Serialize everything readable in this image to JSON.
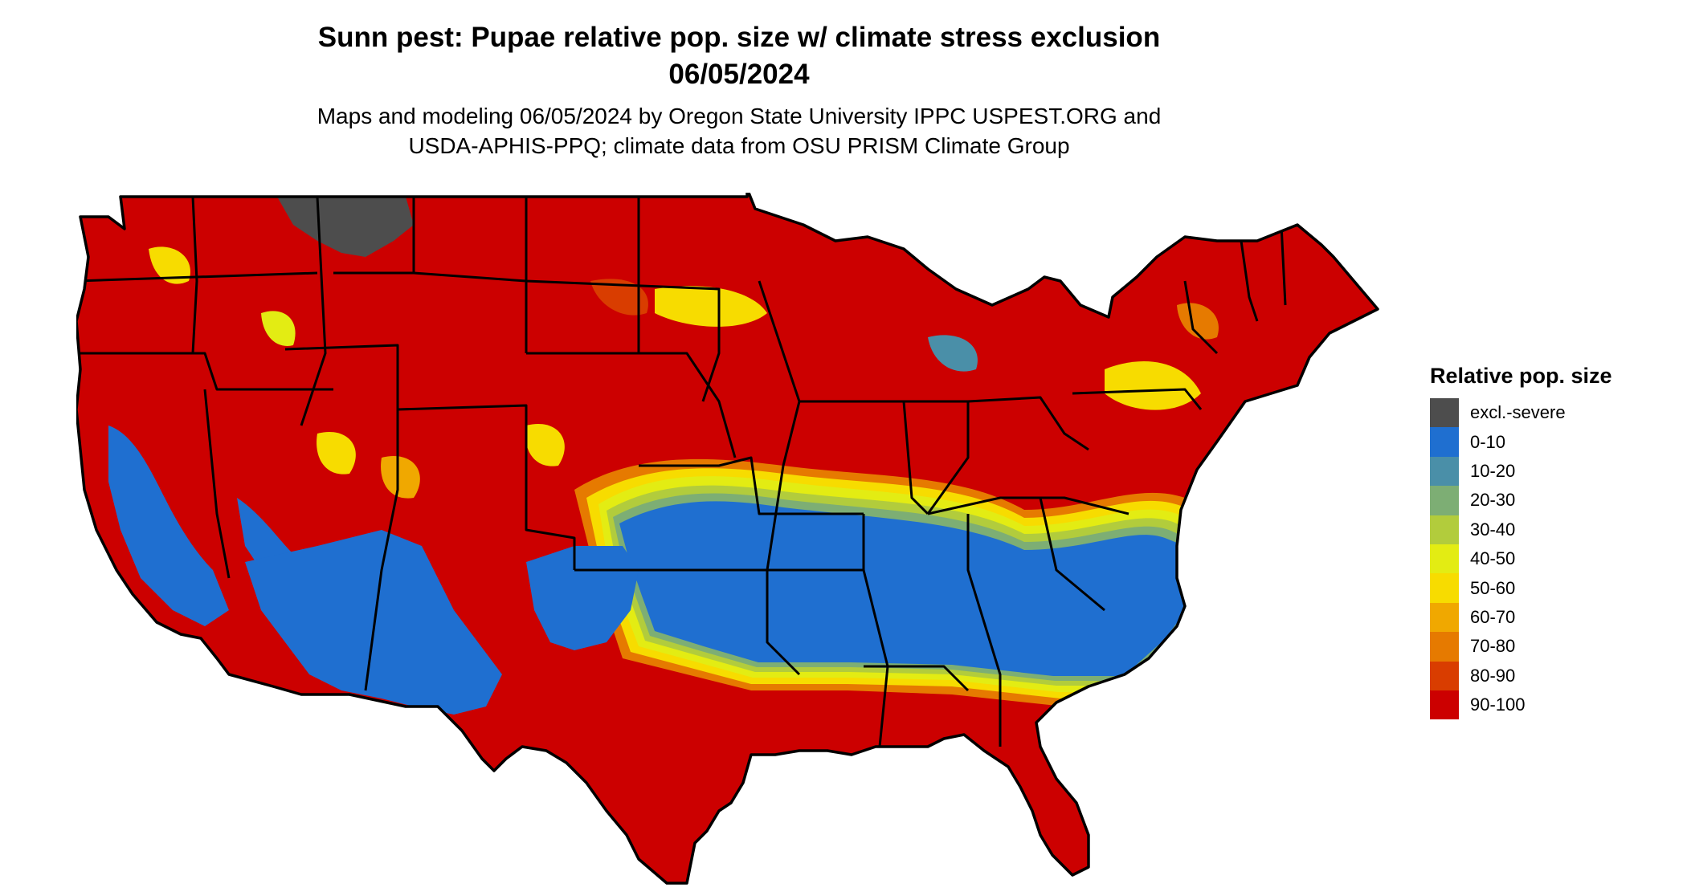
{
  "title": {
    "line1": "Sunn pest: Pupae relative pop. size w/ climate stress exclusion",
    "line2": "06/05/2024"
  },
  "subtitle": {
    "line1": "Maps and modeling 06/05/2024 by Oregon State University IPPC USPEST.ORG and",
    "line2": "USDA-APHIS-PPQ; climate data from OSU PRISM Climate Group"
  },
  "legend": {
    "title": "Relative pop. size",
    "items": [
      {
        "label": "excl.-severe",
        "color": "#4d4d4d"
      },
      {
        "label": "0-10",
        "color": "#1f6fd0"
      },
      {
        "label": "10-20",
        "color": "#4a8fa8"
      },
      {
        "label": "20-30",
        "color": "#7dae74"
      },
      {
        "label": "30-40",
        "color": "#b2cc3c"
      },
      {
        "label": "40-50",
        "color": "#e3ec13"
      },
      {
        "label": "50-60",
        "color": "#f7dc00"
      },
      {
        "label": "60-70",
        "color": "#f0a800"
      },
      {
        "label": "70-80",
        "color": "#e67a00"
      },
      {
        "label": "80-90",
        "color": "#d93d00"
      },
      {
        "label": "90-100",
        "color": "#cc0000"
      }
    ]
  },
  "map": {
    "background_color": "#cc0000",
    "border_color": "#000000"
  }
}
